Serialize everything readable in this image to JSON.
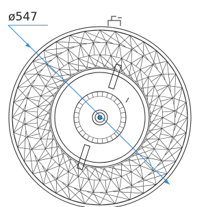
{
  "dimension": {
    "label": "ø547"
  }
}
